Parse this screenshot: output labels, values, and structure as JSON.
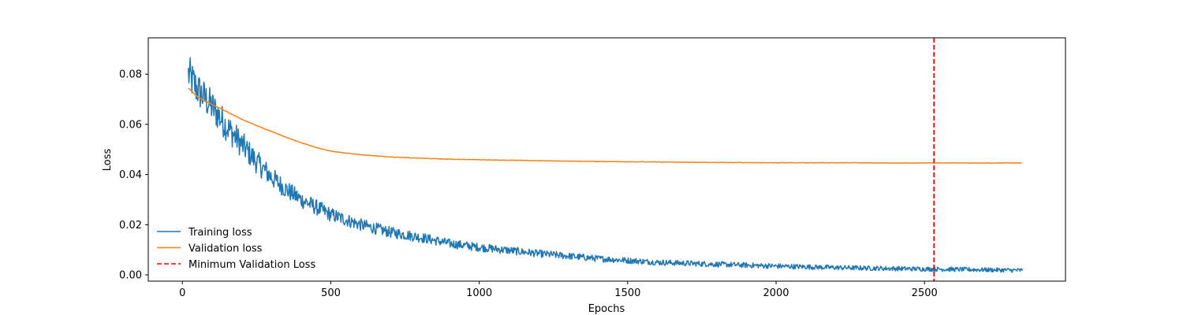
{
  "chart_data": {
    "type": "line",
    "title": "",
    "xlabel": "Epochs",
    "ylabel": "Loss",
    "xlim": [
      -115,
      2975
    ],
    "ylim": [
      -0.0025,
      0.0945
    ],
    "xticks": [
      0,
      500,
      1000,
      1500,
      2000,
      2500
    ],
    "xtick_labels": [
      "0",
      "500",
      "1000",
      "1500",
      "2000",
      "2500"
    ],
    "yticks": [
      0.0,
      0.02,
      0.04,
      0.06,
      0.08
    ],
    "ytick_labels": [
      "0.00",
      "0.02",
      "0.04",
      "0.06",
      "0.08"
    ],
    "grid": false,
    "legend_position": "lower-left",
    "series": [
      {
        "name": "Training loss",
        "color": "#1f77b4",
        "style": "noisy-solid",
        "x": [
          20,
          50,
          100,
          150,
          200,
          250,
          300,
          350,
          400,
          500,
          600,
          700,
          800,
          900,
          1000,
          1200,
          1400,
          1600,
          1800,
          2000,
          2200,
          2400,
          2600,
          2830
        ],
        "values": [
          0.08,
          0.074,
          0.067,
          0.059,
          0.052,
          0.045,
          0.039,
          0.034,
          0.03,
          0.024,
          0.02,
          0.017,
          0.015,
          0.0125,
          0.011,
          0.0085,
          0.0065,
          0.005,
          0.0042,
          0.0035,
          0.0029,
          0.0025,
          0.0022,
          0.0018
        ]
      },
      {
        "name": "Validation loss",
        "color": "#ff7f0e",
        "style": "solid",
        "x": [
          20,
          50,
          100,
          150,
          200,
          250,
          300,
          350,
          400,
          450,
          500,
          600,
          700,
          800,
          900,
          1000,
          1200,
          1400,
          1600,
          1800,
          2000,
          2200,
          2400,
          2600,
          2830
        ],
        "values": [
          0.0745,
          0.071,
          0.068,
          0.065,
          0.062,
          0.0595,
          0.0572,
          0.0548,
          0.0527,
          0.0508,
          0.0493,
          0.0479,
          0.047,
          0.0465,
          0.0461,
          0.0459,
          0.0455,
          0.0452,
          0.045,
          0.0448,
          0.0447,
          0.0447,
          0.0446,
          0.0446,
          0.0446
        ]
      },
      {
        "name": "Minimum Validation Loss",
        "color": "#ff0000",
        "style": "dashed-vertical",
        "x": [
          2532
        ]
      }
    ]
  }
}
